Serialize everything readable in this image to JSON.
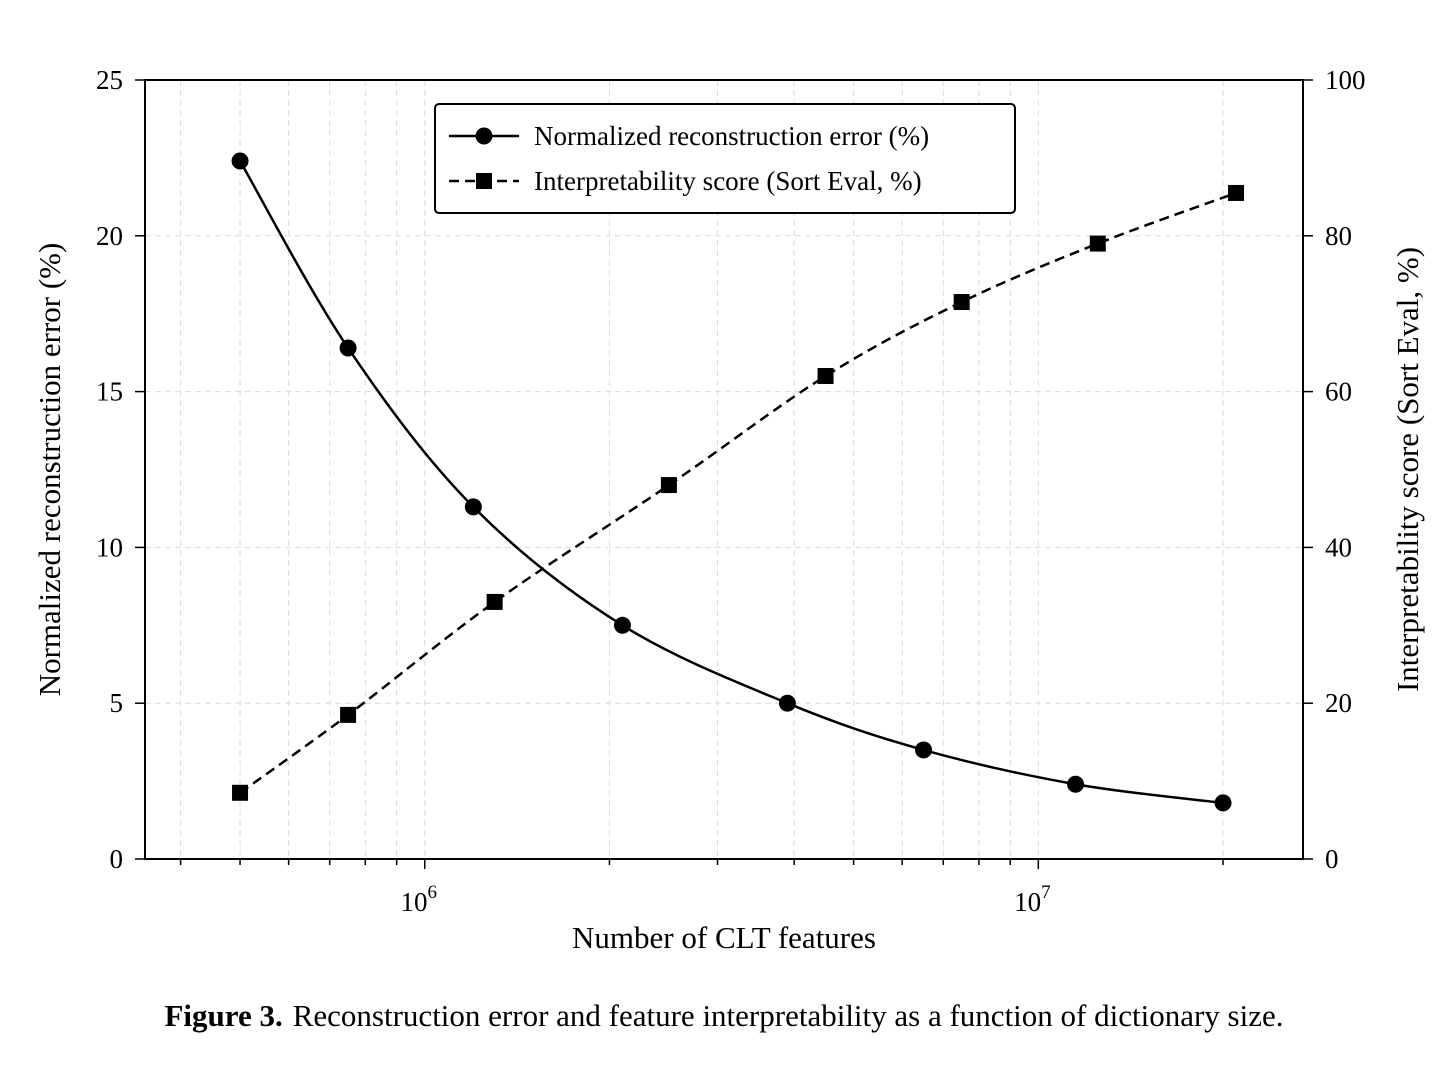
{
  "chart_data": {
    "type": "line",
    "x_scale": "log",
    "x": [
      500000,
      750000,
      1200000,
      2100000,
      3900000,
      6500000,
      11500000,
      20000000
    ],
    "xlim": [
      350000,
      27000000
    ],
    "x_major_ticks": [
      1000000,
      10000000
    ],
    "x_major_tick_labels": [
      {
        "base": "10",
        "exp": "6"
      },
      {
        "base": "10",
        "exp": "7"
      }
    ],
    "xlabel": "Number of CLT features",
    "y_left": {
      "label": "Normalized reconstruction error (%)",
      "lim": [
        0,
        25
      ],
      "ticks": [
        0,
        5,
        10,
        15,
        20,
        25
      ],
      "tick_labels": [
        "0",
        "5",
        "10",
        "15",
        "20",
        "25"
      ]
    },
    "y_right": {
      "label": "Interpretability score (Sort Eval, %)",
      "lim": [
        0,
        100
      ],
      "ticks": [
        0,
        20,
        40,
        60,
        80,
        100
      ],
      "tick_labels": [
        "0",
        "20",
        "40",
        "60",
        "80",
        "100"
      ]
    },
    "series": [
      {
        "name": "Normalized reconstruction error (%)",
        "axis": "left",
        "marker": "circle",
        "line_style": "solid",
        "x": [
          500000,
          750000,
          1200000,
          2100000,
          3900000,
          6500000,
          11500000,
          20000000
        ],
        "values": [
          22.4,
          16.4,
          11.3,
          7.5,
          5.0,
          3.5,
          2.4,
          1.8
        ]
      },
      {
        "name": "Interpretability score (Sort Eval, %)",
        "axis": "right",
        "marker": "square",
        "line_style": "dashed",
        "x": [
          500000,
          750000,
          1300000,
          2500000,
          4500000,
          7500000,
          12500000,
          21000000
        ],
        "values": [
          8.5,
          18.5,
          33,
          48,
          62,
          71.5,
          79,
          85.5
        ]
      }
    ],
    "grid": true,
    "legend_placement": "top-center",
    "line_color": "#000000"
  },
  "caption": {
    "label": "Figure 3.",
    "text": "Reconstruction error and feature interpretability as a function of dictionary size."
  }
}
